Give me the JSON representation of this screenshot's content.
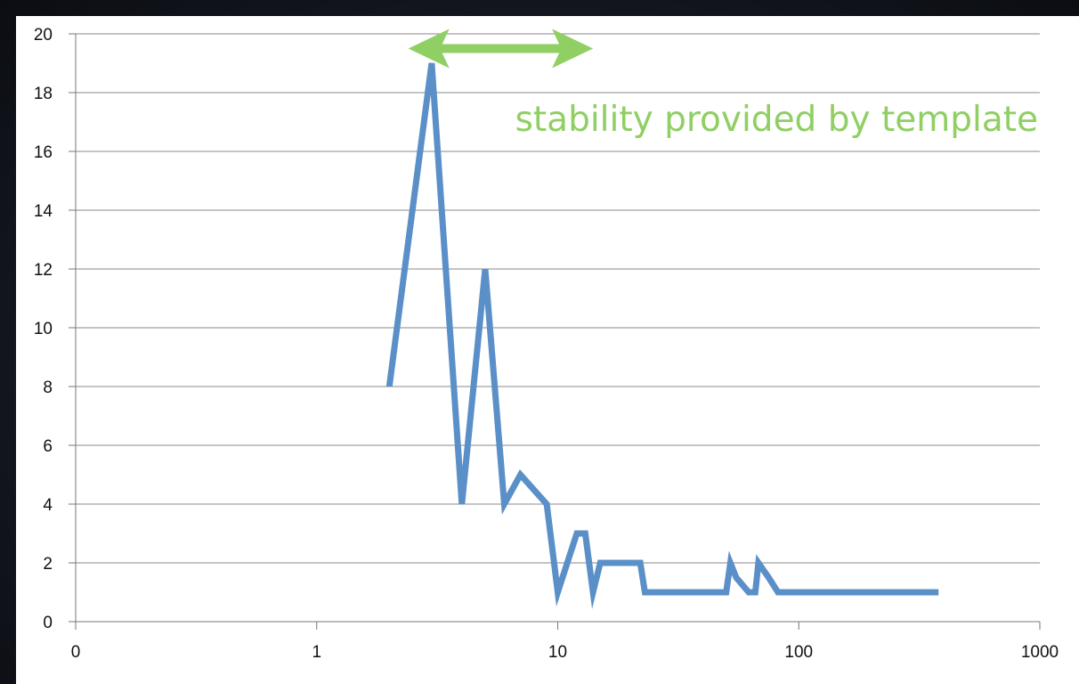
{
  "chart_data": {
    "type": "line",
    "title": "",
    "xlabel": "",
    "ylabel": "",
    "x_scale": "log",
    "x_ticks": [
      "0",
      "1",
      "10",
      "100",
      "1000"
    ],
    "y_ticks": [
      "0",
      "2",
      "4",
      "6",
      "8",
      "10",
      "12",
      "14",
      "16",
      "18",
      "20"
    ],
    "ylim": [
      0,
      20
    ],
    "grid": "horizontal",
    "legend": "none",
    "series": [
      {
        "color": "#5b8fc8",
        "points": [
          [
            2,
            8
          ],
          [
            3,
            19
          ],
          [
            4,
            4
          ],
          [
            5,
            12
          ],
          [
            6,
            4
          ],
          [
            7,
            5
          ],
          [
            9,
            4
          ],
          [
            10,
            1
          ],
          [
            12,
            3
          ],
          [
            13,
            3
          ],
          [
            14,
            1
          ],
          [
            15,
            2
          ],
          [
            17,
            2
          ],
          [
            20,
            2
          ],
          [
            22,
            2
          ],
          [
            23,
            1
          ],
          [
            30,
            1
          ],
          [
            40,
            1
          ],
          [
            50,
            1
          ],
          [
            52,
            2
          ],
          [
            55,
            1.5
          ],
          [
            62,
            1
          ],
          [
            66,
            1
          ],
          [
            68,
            2
          ],
          [
            75,
            1.5
          ],
          [
            82,
            1
          ],
          [
            100,
            1
          ],
          [
            150,
            1
          ],
          [
            200,
            1
          ],
          [
            300,
            1
          ],
          [
            380,
            1
          ]
        ]
      }
    ],
    "annotations": [
      {
        "text": "stability provided by template",
        "color": "#8fcf63",
        "arrow_from_x": 2.4,
        "arrow_to_x": 14,
        "arrow_y": 19.5
      }
    ]
  }
}
